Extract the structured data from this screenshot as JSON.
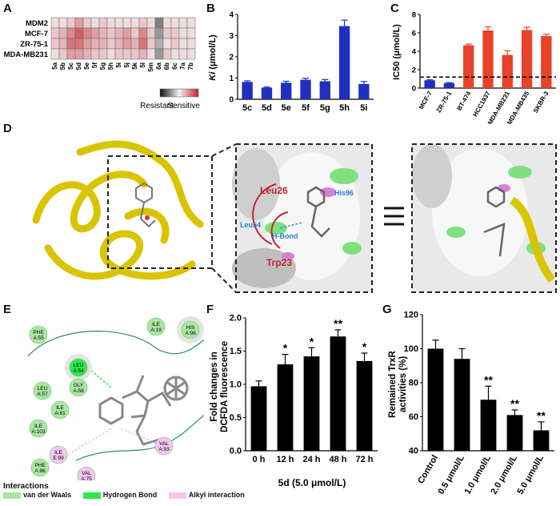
{
  "panels": {
    "A": "A",
    "B": "B",
    "C": "C",
    "D": "D",
    "E": "E",
    "F": "F",
    "G": "G"
  },
  "heatmap": {
    "rows": [
      "MDM2",
      "MCF-7",
      "ZR-75-1",
      "MDA-MB231"
    ],
    "cols": [
      "5a",
      "5b",
      "5c",
      "5d",
      "5e",
      "5f",
      "5g",
      "5h",
      "5i",
      "5j",
      "5k",
      "5l",
      "5m",
      "6a",
      "6b",
      "6c",
      "7a",
      "7b"
    ],
    "values": [
      [
        0.55,
        0.55,
        0.6,
        0.7,
        0.6,
        0.55,
        0.6,
        0.55,
        0.55,
        0.55,
        0.55,
        0.6,
        0.55,
        0.25,
        0.55,
        0.55,
        0.55,
        0.55
      ],
      [
        0.6,
        0.65,
        0.75,
        0.85,
        0.75,
        0.7,
        0.65,
        0.6,
        0.65,
        0.7,
        0.6,
        0.75,
        0.6,
        0.3,
        0.6,
        0.6,
        0.55,
        0.55
      ],
      [
        0.6,
        0.65,
        0.8,
        0.8,
        0.7,
        0.65,
        0.65,
        0.6,
        0.65,
        0.7,
        0.65,
        0.8,
        0.6,
        0.35,
        0.55,
        0.6,
        0.55,
        0.55
      ],
      [
        0.55,
        0.6,
        0.7,
        0.7,
        0.65,
        0.6,
        0.6,
        0.55,
        0.6,
        0.6,
        0.6,
        0.65,
        0.55,
        0.3,
        0.6,
        0.55,
        0.55,
        0.55
      ]
    ],
    "scale_low": "Resistant",
    "scale_high": "Sensitive",
    "colors": {
      "low": "#111111",
      "mid": "#f2f2f2",
      "high": "#c81e2a"
    }
  },
  "chart_data": [
    {
      "panel": "B",
      "type": "bar",
      "categories": [
        "5c",
        "5d",
        "5e",
        "5f",
        "5g",
        "5h",
        "5i"
      ],
      "values": [
        0.82,
        0.55,
        0.78,
        0.92,
        0.85,
        3.45,
        0.72
      ],
      "errors": [
        0.05,
        0.03,
        0.07,
        0.07,
        0.08,
        0.28,
        0.12
      ],
      "ylabel": "Ki (μmol/L)",
      "yticks": [
        0,
        1,
        2,
        3,
        4
      ],
      "ylim": [
        0,
        4
      ],
      "color": "#1f2fbf"
    },
    {
      "panel": "C",
      "type": "bar",
      "categories": [
        "MCF-7",
        "ZR-75-1",
        "BT-474",
        "HCC1937",
        "MDA-MB231",
        "MDA-MB435",
        "SKBR-3"
      ],
      "values": [
        0.85,
        0.55,
        4.65,
        6.25,
        3.6,
        6.3,
        5.65
      ],
      "errors": [
        0.05,
        0.04,
        0.12,
        0.4,
        0.45,
        0.3,
        0.2
      ],
      "colors": [
        "#1f2fbf",
        "#1f2fbf",
        "#e8432a",
        "#e8432a",
        "#e8432a",
        "#e8432a",
        "#e8432a"
      ],
      "ylabel": "IC50 (μmol/L)",
      "yticks": [
        0,
        2,
        4,
        6,
        8
      ],
      "ylim": [
        0,
        8
      ],
      "reference_line": 1.2
    },
    {
      "panel": "F",
      "type": "bar",
      "categories": [
        "0 h",
        "12 h",
        "24 h",
        "48 h",
        "72 h"
      ],
      "values": [
        0.97,
        1.3,
        1.42,
        1.72,
        1.35
      ],
      "errors": [
        0.08,
        0.15,
        0.13,
        0.1,
        0.12
      ],
      "significance": [
        "",
        "*",
        "*",
        "**",
        "*"
      ],
      "ylabel": "Fold changes in DCFDA fluorescence",
      "xlabel": "5d (5.0 μmol/L)",
      "yticks": [
        0.0,
        0.5,
        1.0,
        1.5,
        2.0
      ],
      "ylim": [
        0,
        2
      ],
      "color": "#000000"
    },
    {
      "panel": "G",
      "type": "bar",
      "categories": [
        "Control",
        "0.5 μmol/L",
        "1.0 μmol/L",
        "2.0 μmol/L",
        "5.0 μmol/L"
      ],
      "values": [
        100,
        94,
        70,
        61,
        52
      ],
      "errors": [
        5,
        6,
        8,
        3,
        5
      ],
      "significance": [
        "",
        "",
        "**",
        "**",
        "**"
      ],
      "ylabel": "Remained TrxR activities (%)",
      "yticks": [
        40,
        60,
        80,
        100,
        120
      ],
      "ylim": [
        40,
        120
      ],
      "color": "#000000"
    }
  ],
  "panelD": {
    "labels": {
      "leu26": "Leu26",
      "his96": "His96",
      "leu54": "Leu54",
      "hbond": "H-Bond",
      "trp23": "Trp23"
    }
  },
  "panelE": {
    "residues": [
      {
        "name": "PHE\nA:55",
        "type": "vdw"
      },
      {
        "name": "ILE\nA:19",
        "type": "vdw"
      },
      {
        "name": "HIS\nA:96",
        "type": "vdw"
      },
      {
        "name": "LEU\nA:54",
        "type": "hbond"
      },
      {
        "name": "GLY\nA:58",
        "type": "vdw"
      },
      {
        "name": "LEU\nA:57",
        "type": "vdw"
      },
      {
        "name": "ILE\nA:61",
        "type": "vdw"
      },
      {
        "name": "ILE\nA:103",
        "type": "vdw"
      },
      {
        "name": "ILE\nE:99",
        "type": "alkyl"
      },
      {
        "name": "PHE\nA:86",
        "type": "vdw"
      },
      {
        "name": "VAL\nA:75",
        "type": "alkyl"
      },
      {
        "name": "VAL\nA:93",
        "type": "alkyl"
      }
    ],
    "legend": {
      "title": "Interactions",
      "vdw": "van der Waals",
      "hbond": "Hydrogen Bond",
      "alkyl": "Alkyl interaction"
    },
    "colors": {
      "vdw": "#a8e6a1",
      "hbond": "#2ee84a",
      "alkyl": "#f4c6f0"
    }
  }
}
